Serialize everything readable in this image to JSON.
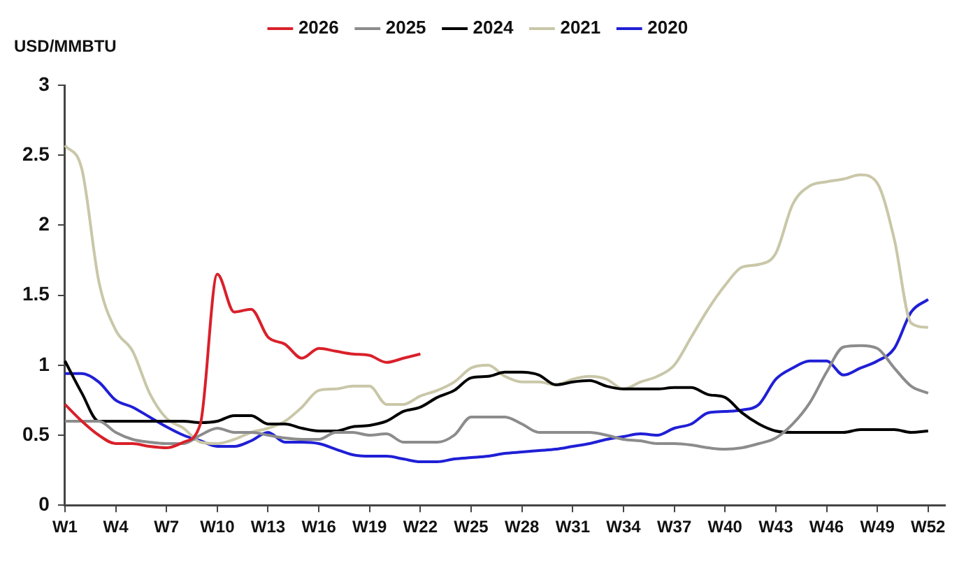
{
  "chart_data": {
    "type": "line",
    "ylabel": "USD/MMBTU",
    "legend": "top",
    "grid": false,
    "marker": "none",
    "line_style": "solid",
    "categories": [
      "W1",
      null,
      null,
      "W4",
      null,
      null,
      "W7",
      null,
      null,
      "W10",
      null,
      null,
      "W13",
      null,
      null,
      "W16",
      null,
      null,
      "W19",
      null,
      null,
      "W22",
      null,
      null,
      "W25",
      null,
      null,
      "W28",
      null,
      null,
      "W31",
      null,
      null,
      "W34",
      null,
      null,
      "W37",
      null,
      null,
      "W40",
      null,
      null,
      "W43",
      null,
      null,
      "W46",
      null,
      null,
      "W49",
      null,
      null,
      "W52",
      null
    ],
    "ylim": [
      0,
      3
    ],
    "yticks": [
      0,
      0.5,
      1,
      1.5,
      2,
      2.5,
      3
    ],
    "series": [
      {
        "name": "2026",
        "color": "#d9202a",
        "values": [
          0.72,
          0.6,
          0.5,
          0.44,
          0.44,
          0.42,
          0.41,
          0.45,
          0.58,
          1.65,
          1.38,
          1.4,
          1.2,
          1.15,
          1.05,
          1.12,
          1.1,
          1.08,
          1.07,
          1.02,
          1.05,
          1.08,
          null,
          null,
          null,
          null,
          null,
          null,
          null,
          null,
          null,
          null,
          null,
          null,
          null,
          null,
          null,
          null,
          null,
          null,
          null,
          null,
          null,
          null,
          null,
          null,
          null,
          null,
          null,
          null,
          null,
          null,
          null
        ]
      },
      {
        "name": "2025",
        "color": "#8c8c8c",
        "values": [
          0.6,
          0.6,
          0.6,
          0.52,
          0.47,
          0.45,
          0.44,
          0.44,
          0.5,
          0.55,
          0.52,
          0.52,
          0.5,
          0.48,
          0.47,
          0.47,
          0.52,
          0.52,
          0.5,
          0.51,
          0.45,
          0.45,
          0.45,
          0.5,
          0.63,
          0.63,
          0.63,
          0.58,
          0.52,
          0.52,
          0.52,
          0.52,
          0.5,
          0.47,
          0.46,
          0.44,
          0.44,
          0.43,
          0.41,
          0.4,
          0.41,
          0.44,
          0.48,
          0.58,
          0.73,
          0.95,
          1.13,
          1.14,
          1.12,
          0.98,
          0.85,
          0.8,
          null
        ]
      },
      {
        "name": "2024",
        "color": "#000000",
        "values": [
          1.03,
          0.8,
          0.6,
          0.6,
          0.6,
          0.6,
          0.6,
          0.6,
          0.59,
          0.6,
          0.64,
          0.64,
          0.58,
          0.58,
          0.55,
          0.53,
          0.53,
          0.56,
          0.57,
          0.6,
          0.67,
          0.7,
          0.77,
          0.82,
          0.91,
          0.92,
          0.95,
          0.95,
          0.93,
          0.86,
          0.88,
          0.89,
          0.85,
          0.83,
          0.83,
          0.83,
          0.84,
          0.84,
          0.79,
          0.77,
          0.66,
          0.58,
          0.53,
          0.52,
          0.52,
          0.52,
          0.52,
          0.54,
          0.54,
          0.54,
          0.52,
          0.53,
          null
        ]
      },
      {
        "name": "2021",
        "color": "#c9c7a8",
        "values": [
          2.57,
          2.4,
          1.6,
          1.25,
          1.1,
          0.8,
          0.62,
          0.55,
          0.45,
          0.44,
          0.47,
          0.52,
          0.55,
          0.6,
          0.7,
          0.82,
          0.83,
          0.85,
          0.85,
          0.72,
          0.72,
          0.78,
          0.82,
          0.88,
          0.98,
          1.0,
          0.92,
          0.88,
          0.88,
          0.86,
          0.9,
          0.92,
          0.9,
          0.83,
          0.88,
          0.92,
          1.0,
          1.2,
          1.4,
          1.57,
          1.7,
          1.72,
          1.8,
          2.15,
          2.28,
          2.31,
          2.33,
          2.36,
          2.3,
          1.9,
          1.3,
          1.27,
          null
        ]
      },
      {
        "name": "2020",
        "color": "#1f1fd6",
        "values": [
          0.94,
          0.94,
          0.88,
          0.75,
          0.7,
          0.63,
          0.56,
          0.5,
          0.46,
          0.42,
          0.42,
          0.46,
          0.52,
          0.45,
          0.45,
          0.44,
          0.4,
          0.36,
          0.35,
          0.35,
          0.33,
          0.31,
          0.31,
          0.33,
          0.34,
          0.35,
          0.37,
          0.38,
          0.39,
          0.4,
          0.42,
          0.44,
          0.47,
          0.49,
          0.51,
          0.5,
          0.55,
          0.58,
          0.66,
          0.67,
          0.68,
          0.72,
          0.9,
          0.98,
          1.03,
          1.03,
          0.93,
          0.98,
          1.03,
          1.12,
          1.38,
          1.47,
          null
        ]
      }
    ]
  }
}
